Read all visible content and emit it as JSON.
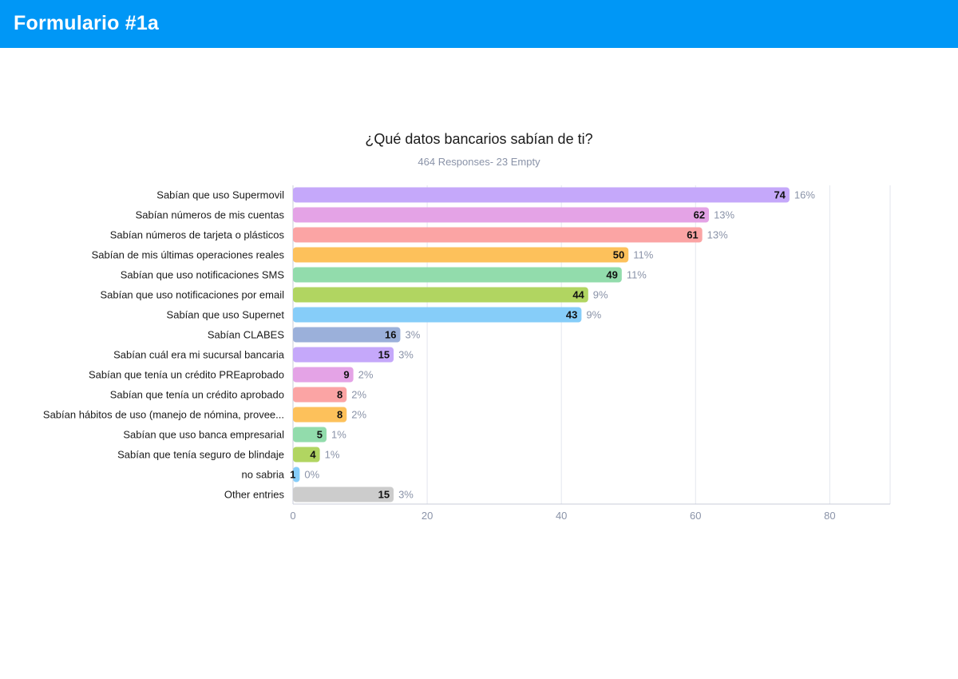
{
  "header": {
    "title": "Formulario #1a"
  },
  "colors": {
    "header_bg": "#0097f6",
    "grid": "#e3e6ee",
    "tick_text": "#8a93a8",
    "palette": [
      "#c5a8fa",
      "#e4a3e6",
      "#fba4a4",
      "#fdc15b",
      "#92dcac",
      "#b1d561",
      "#86cdf9",
      "#9bb0da",
      "#c5a8fa",
      "#e4a3e6",
      "#fba4a4",
      "#fdc15b",
      "#92dcac",
      "#b1d561",
      "#86cdf9",
      "#cccccc"
    ]
  },
  "chart_data": {
    "type": "bar",
    "orientation": "horizontal",
    "title": "¿Qué datos bancarios sabían de ti?",
    "subtitle": "464 Responses- 23 Empty",
    "categories": [
      "Sabían que uso Supermovil",
      "Sabían números de mis cuentas",
      "Sabían números de tarjeta o plásticos",
      "Sabían de mis últimas operaciones reales",
      "Sabían que uso notificaciones SMS",
      "Sabían que uso notificaciones por email",
      "Sabían que uso Supernet",
      "Sabían CLABES",
      "Sabían cuál era mi sucursal bancaria",
      "Sabían que tenía un crédito PREaprobado",
      "Sabían que tenía un crédito aprobado",
      "Sabían hábitos de uso (manejo de nómina, provee...",
      "Sabían que uso banca empresarial",
      "Sabían que tenía seguro de blindaje",
      "no sabria",
      "Other entries"
    ],
    "values": [
      74,
      62,
      61,
      50,
      49,
      44,
      43,
      16,
      15,
      9,
      8,
      8,
      5,
      4,
      1,
      15
    ],
    "percents": [
      "16%",
      "13%",
      "13%",
      "11%",
      "11%",
      "9%",
      "9%",
      "3%",
      "3%",
      "2%",
      "2%",
      "2%",
      "1%",
      "1%",
      "0%",
      "3%"
    ],
    "xticks": [
      0,
      20,
      40,
      60,
      80
    ],
    "xlim": [
      0,
      89
    ],
    "xlabel": "",
    "ylabel": "",
    "grid": true
  }
}
